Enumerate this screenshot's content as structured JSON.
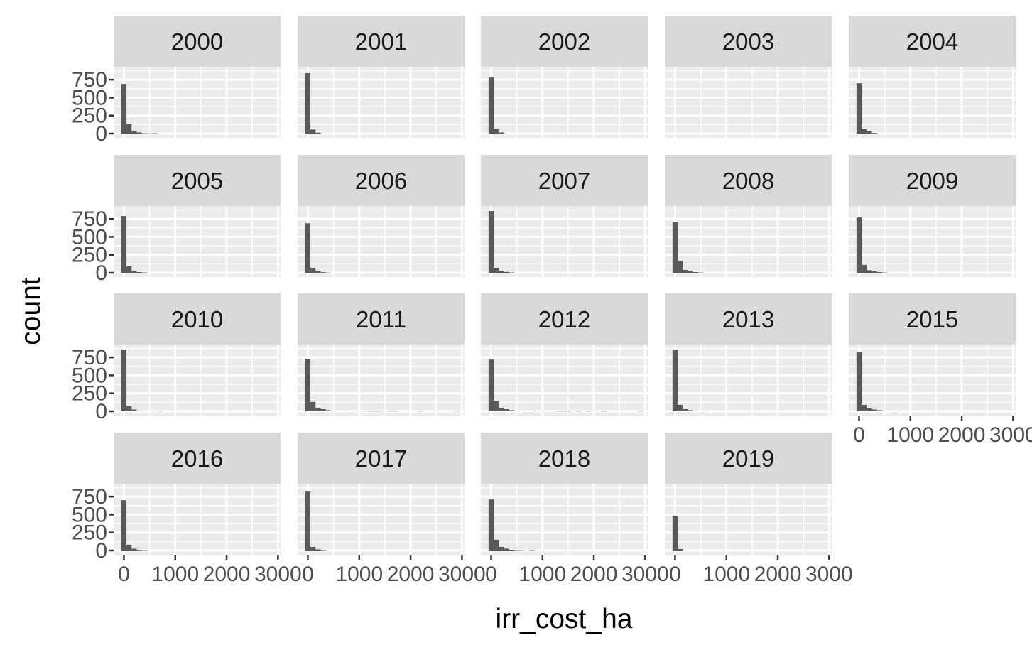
{
  "chart_data": {
    "type": "bar",
    "subtype": "faceted-histogram",
    "xlabel": "irr_cost_ha",
    "ylabel": "count",
    "xlim": [
      -200,
      3050
    ],
    "ylim": [
      0,
      870
    ],
    "x_ticks": [
      0,
      1000,
      2000,
      3000
    ],
    "x_tick_labels": [
      "0",
      "1000",
      "2000",
      "3000"
    ],
    "y_ticks": [
      0,
      250,
      500,
      750
    ],
    "y_tick_labels": [
      "0",
      "250",
      "500",
      "750"
    ],
    "bin_width": 100,
    "bin_starts": [
      -50,
      50,
      150,
      250,
      350,
      450,
      550,
      650,
      750,
      850,
      950,
      1050,
      1150,
      1250,
      1350,
      1450,
      1550,
      1650,
      1750,
      1850,
      1950,
      2050,
      2150,
      2250,
      2350,
      2450,
      2550,
      2650,
      2750,
      2850
    ],
    "facet_columns": 5,
    "grid": true,
    "legend": "none",
    "facets": [
      {
        "label": "2000",
        "counts": [
          690,
          130,
          40,
          15,
          5,
          2,
          4,
          0,
          0,
          0,
          0,
          0,
          0,
          0,
          0,
          0,
          0,
          0,
          0,
          0,
          0,
          0,
          0,
          0,
          0,
          0,
          0,
          0,
          0,
          0
        ]
      },
      {
        "label": "2001",
        "counts": [
          840,
          55,
          12,
          0,
          0,
          0,
          0,
          0,
          0,
          0,
          0,
          0,
          0,
          0,
          0,
          0,
          0,
          0,
          0,
          0,
          0,
          0,
          0,
          0,
          0,
          0,
          0,
          0,
          0,
          0
        ]
      },
      {
        "label": "2002",
        "counts": [
          780,
          60,
          15,
          0,
          0,
          0,
          0,
          0,
          0,
          0,
          0,
          0,
          0,
          0,
          0,
          0,
          0,
          0,
          0,
          0,
          0,
          0,
          0,
          0,
          0,
          0,
          0,
          0,
          0,
          0
        ]
      },
      {
        "label": "2003",
        "counts": [
          0,
          0,
          0,
          0,
          0,
          0,
          0,
          0,
          0,
          0,
          0,
          0,
          0,
          0,
          0,
          0,
          0,
          0,
          0,
          0,
          0,
          0,
          0,
          0,
          0,
          0,
          0,
          0,
          0,
          0
        ]
      },
      {
        "label": "2004",
        "counts": [
          700,
          60,
          30,
          8,
          0,
          0,
          0,
          0,
          0,
          0,
          0,
          0,
          0,
          0,
          0,
          0,
          0,
          0,
          0,
          0,
          0,
          0,
          0,
          0,
          0,
          0,
          0,
          0,
          0,
          0
        ]
      },
      {
        "label": "2005",
        "counts": [
          790,
          90,
          30,
          10,
          5,
          0,
          0,
          0,
          0,
          0,
          0,
          0,
          0,
          0,
          0,
          0,
          0,
          0,
          0,
          0,
          0,
          0,
          0,
          0,
          0,
          0,
          0,
          0,
          0,
          0
        ]
      },
      {
        "label": "2006",
        "counts": [
          690,
          70,
          25,
          8,
          3,
          0,
          0,
          0,
          0,
          0,
          0,
          0,
          0,
          0,
          0,
          0,
          0,
          0,
          0,
          0,
          0,
          0,
          0,
          0,
          0,
          0,
          0,
          0,
          0,
          0
        ]
      },
      {
        "label": "2007",
        "counts": [
          860,
          70,
          30,
          12,
          5,
          0,
          0,
          0,
          0,
          0,
          0,
          0,
          0,
          0,
          0,
          0,
          0,
          0,
          0,
          0,
          0,
          0,
          0,
          0,
          0,
          0,
          0,
          0,
          0,
          0
        ]
      },
      {
        "label": "2008",
        "counts": [
          710,
          160,
          40,
          20,
          10,
          4,
          0,
          0,
          0,
          0,
          0,
          0,
          0,
          0,
          0,
          0,
          0,
          0,
          0,
          0,
          0,
          0,
          0,
          0,
          0,
          0,
          0,
          0,
          0,
          0
        ]
      },
      {
        "label": "2009",
        "counts": [
          770,
          110,
          35,
          20,
          10,
          4,
          0,
          0,
          0,
          0,
          0,
          0,
          0,
          0,
          0,
          0,
          0,
          0,
          0,
          0,
          0,
          0,
          0,
          0,
          0,
          0,
          0,
          0,
          0,
          0
        ]
      },
      {
        "label": "2010",
        "counts": [
          860,
          70,
          25,
          10,
          5,
          5,
          4,
          3,
          0,
          0,
          0,
          0,
          0,
          0,
          0,
          0,
          0,
          0,
          0,
          0,
          0,
          0,
          0,
          0,
          0,
          0,
          0,
          0,
          0,
          0
        ]
      },
      {
        "label": "2011",
        "counts": [
          730,
          130,
          50,
          30,
          15,
          8,
          6,
          5,
          5,
          4,
          4,
          4,
          3,
          3,
          3,
          0,
          3,
          3,
          0,
          0,
          0,
          0,
          3,
          0,
          0,
          0,
          0,
          0,
          0,
          3
        ]
      },
      {
        "label": "2012",
        "counts": [
          720,
          140,
          50,
          30,
          15,
          10,
          8,
          5,
          5,
          0,
          4,
          4,
          4,
          3,
          3,
          3,
          0,
          3,
          0,
          3,
          0,
          0,
          3,
          0,
          0,
          0,
          0,
          0,
          0,
          3
        ]
      },
      {
        "label": "2013",
        "counts": [
          860,
          90,
          30,
          15,
          10,
          6,
          5,
          5,
          0,
          0,
          0,
          0,
          0,
          0,
          0,
          0,
          0,
          0,
          0,
          0,
          0,
          0,
          0,
          0,
          0,
          0,
          0,
          0,
          0,
          0
        ]
      },
      {
        "label": "2015",
        "counts": [
          820,
          90,
          40,
          25,
          15,
          10,
          8,
          6,
          5,
          0,
          0,
          0,
          0,
          0,
          0,
          0,
          0,
          0,
          0,
          0,
          0,
          0,
          0,
          0,
          0,
          0,
          0,
          0,
          0,
          0
        ]
      },
      {
        "label": "2016",
        "counts": [
          700,
          80,
          25,
          8,
          4,
          0,
          0,
          0,
          0,
          0,
          0,
          0,
          0,
          0,
          0,
          0,
          0,
          0,
          0,
          0,
          0,
          0,
          0,
          0,
          0,
          0,
          0,
          0,
          0,
          0
        ]
      },
      {
        "label": "2017",
        "counts": [
          830,
          50,
          15,
          6,
          0,
          0,
          0,
          0,
          0,
          0,
          0,
          0,
          0,
          0,
          0,
          0,
          0,
          0,
          0,
          0,
          0,
          0,
          0,
          0,
          0,
          0,
          0,
          0,
          0,
          0
        ]
      },
      {
        "label": "2018",
        "counts": [
          710,
          150,
          50,
          25,
          10,
          5,
          3,
          0,
          5,
          0,
          0,
          0,
          0,
          0,
          0,
          0,
          0,
          0,
          0,
          0,
          0,
          0,
          0,
          0,
          0,
          0,
          0,
          0,
          0,
          0
        ]
      },
      {
        "label": "2019",
        "counts": [
          480,
          20,
          0,
          0,
          0,
          0,
          0,
          0,
          0,
          0,
          0,
          0,
          0,
          0,
          0,
          0,
          0,
          0,
          0,
          0,
          0,
          0,
          0,
          0,
          0,
          0,
          0,
          0,
          0,
          0
        ]
      }
    ]
  }
}
